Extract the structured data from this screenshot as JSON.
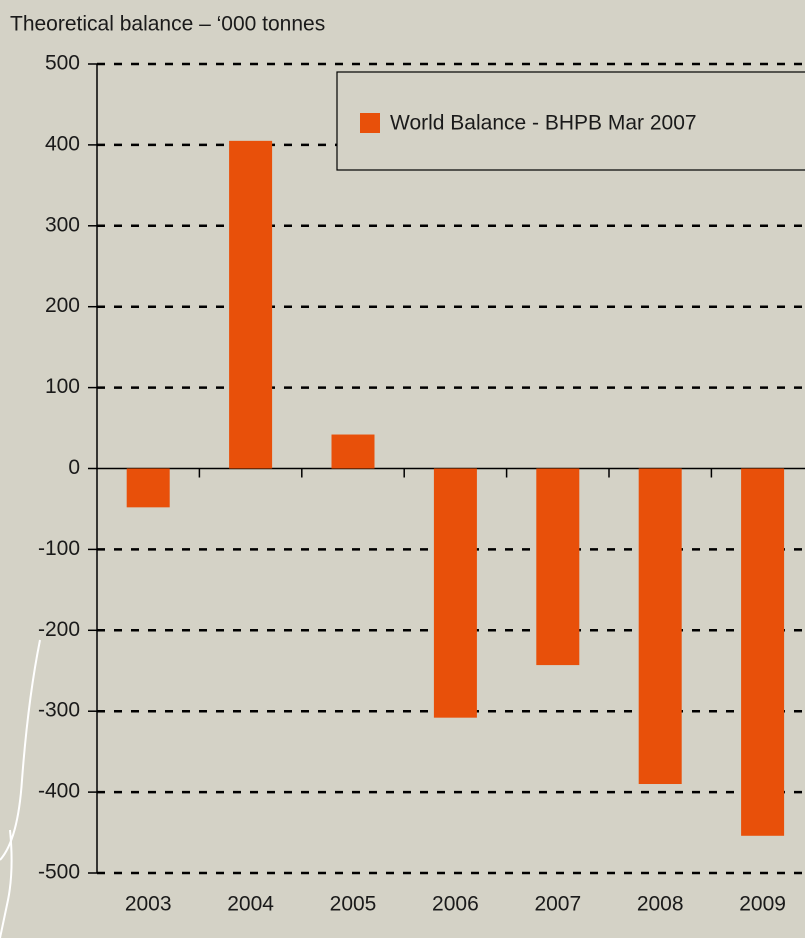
{
  "chart_data": {
    "type": "bar",
    "title": "Theoretical balance – ‘000 tonnes",
    "categories": [
      "2003",
      "2004",
      "2005",
      "2006",
      "2007",
      "2008",
      "2009"
    ],
    "series": [
      {
        "name": "World Balance - BHPB Mar 2007",
        "color": "#e8500a",
        "values": [
          -48,
          405,
          42,
          -308,
          -243,
          -390,
          -454
        ]
      }
    ],
    "ylim": [
      -500,
      500
    ],
    "yticks": [
      -500,
      -400,
      -300,
      -200,
      -100,
      0,
      100,
      200,
      300,
      400,
      500
    ],
    "grid": true,
    "legend": "top-right"
  }
}
